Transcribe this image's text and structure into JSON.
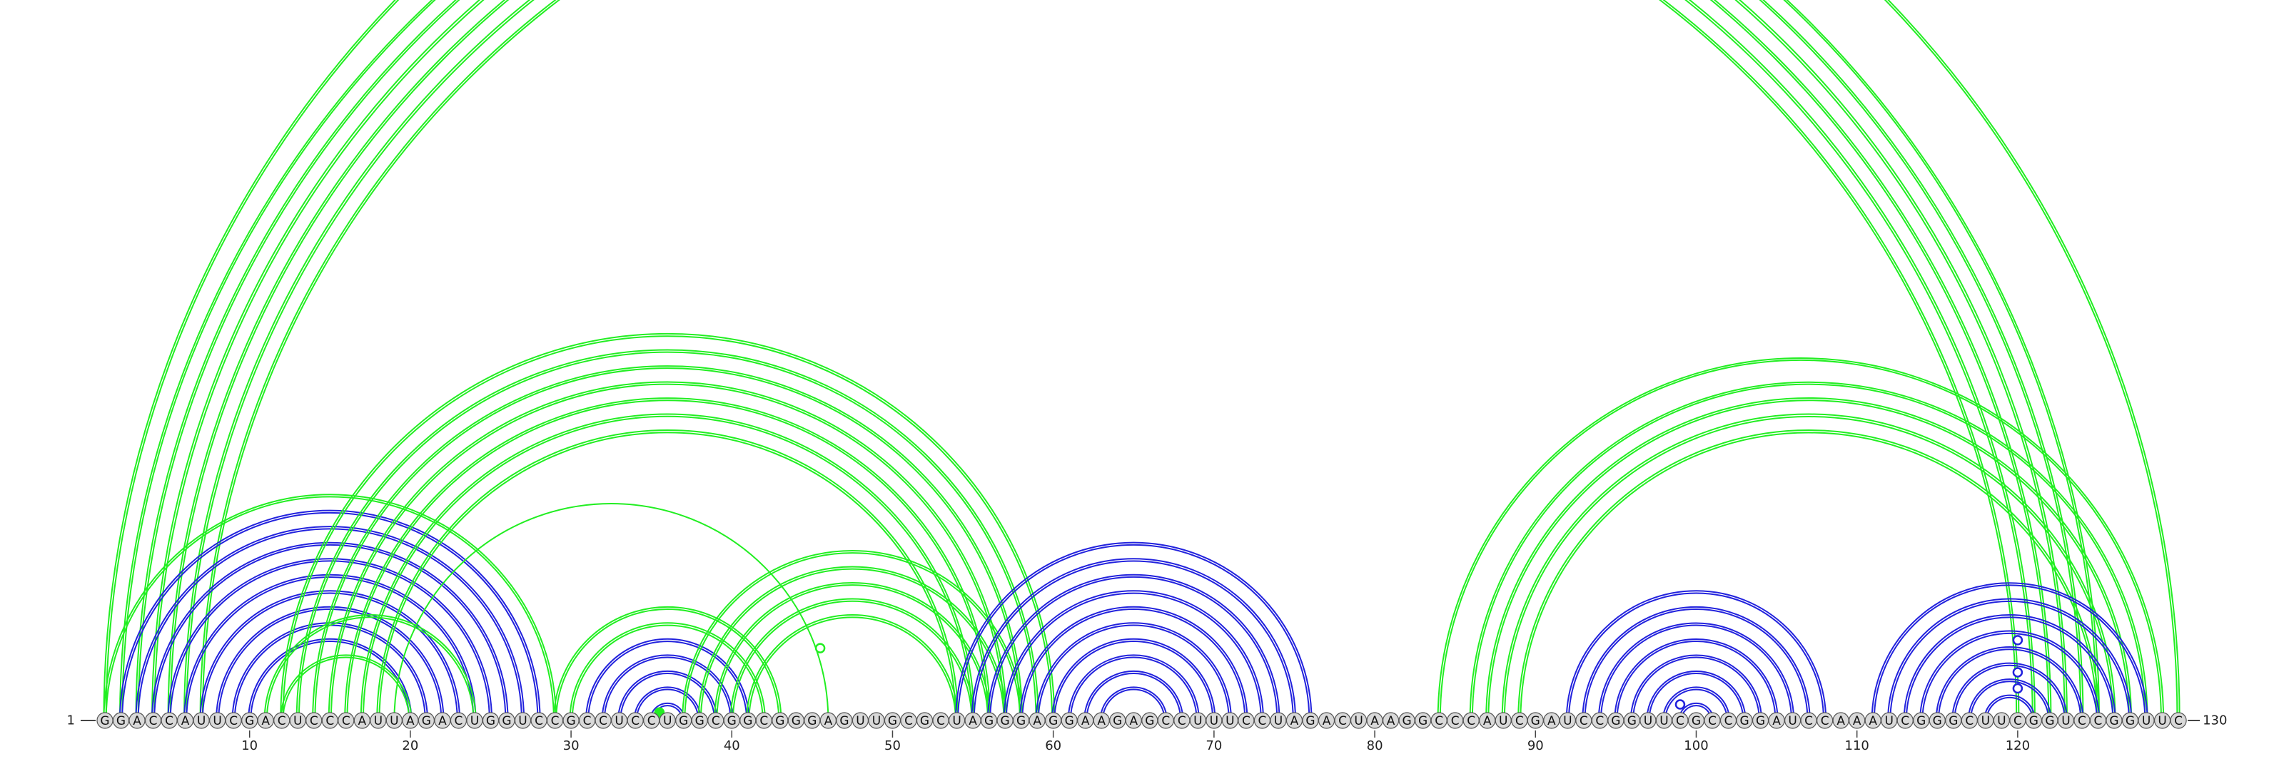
{
  "sequence": "GGACCAUUCGACUCCCAUUAGACUGGUCCGCCUCCUGGCGGCGGGAGUUGCGCUAGGGAGGAAGAGCCUUUCCUAGACUAAGGCCCAUCGAUCCGGUUCGCCGGAUCCAAAUCGGGCUUCGGUCCGGUUC",
  "start_label": "1",
  "end_label": "130",
  "tick_labels": [
    "10",
    "20",
    "30",
    "40",
    "50",
    "60",
    "70",
    "80",
    "90",
    "100",
    "110",
    "120"
  ],
  "colors": {
    "green": "#22ee22",
    "blue": "#2222dd",
    "nucleotide_fill": "#d9d9d9",
    "nucleotide_stroke": "#555555"
  },
  "arc_groups": [
    {
      "color": "green",
      "tracks": 2,
      "pairs": [
        [
          1,
          130
        ],
        [
          2,
          125
        ],
        [
          3,
          124
        ],
        [
          4,
          123
        ],
        [
          5,
          122
        ],
        [
          6,
          121
        ],
        [
          7,
          120
        ]
      ]
    },
    {
      "color": "blue",
      "tracks": 2,
      "pairs": [
        [
          2,
          28
        ],
        [
          3,
          27
        ],
        [
          4,
          26
        ],
        [
          5,
          25
        ],
        [
          6,
          24
        ],
        [
          7,
          23
        ],
        [
          8,
          22
        ],
        [
          9,
          21
        ],
        [
          10,
          20
        ]
      ]
    },
    {
      "color": "green",
      "tracks": 2,
      "pairs": [
        [
          1,
          29
        ],
        [
          11,
          24
        ],
        [
          12,
          20
        ]
      ]
    },
    {
      "color": "green",
      "tracks": 2,
      "pairs": [
        [
          12,
          60
        ],
        [
          13,
          59
        ],
        [
          14,
          58
        ],
        [
          15,
          57
        ],
        [
          16,
          56
        ],
        [
          17,
          55
        ],
        [
          18,
          54
        ]
      ]
    },
    {
      "color": "green",
      "tracks": 1,
      "pairs": [
        [
          19,
          46
        ]
      ]
    },
    {
      "color": "green",
      "tracks": 2,
      "pairs": [
        [
          29,
          43
        ],
        [
          30,
          42
        ]
      ]
    },
    {
      "color": "blue",
      "tracks": 2,
      "pairs": [
        [
          31,
          41
        ],
        [
          32,
          40
        ],
        [
          33,
          39
        ],
        [
          34,
          38
        ],
        [
          35,
          37
        ]
      ]
    },
    {
      "color": "green",
      "tracks": 2,
      "pairs": [
        [
          37,
          58
        ],
        [
          38,
          57
        ],
        [
          39,
          56
        ],
        [
          40,
          55
        ],
        [
          41,
          54
        ]
      ]
    },
    {
      "color": "blue",
      "tracks": 2,
      "pairs": [
        [
          54,
          76
        ],
        [
          55,
          75
        ],
        [
          56,
          74
        ],
        [
          57,
          73
        ],
        [
          58,
          72
        ],
        [
          59,
          71
        ],
        [
          60,
          70
        ],
        [
          61,
          69
        ],
        [
          62,
          68
        ],
        [
          63,
          67
        ]
      ]
    },
    {
      "color": "green",
      "tracks": 2,
      "pairs": [
        [
          84,
          129
        ],
        [
          86,
          128
        ],
        [
          87,
          127
        ],
        [
          88,
          126
        ],
        [
          89,
          125
        ]
      ]
    },
    {
      "color": "blue",
      "tracks": 2,
      "pairs": [
        [
          92,
          108
        ],
        [
          93,
          107
        ],
        [
          94,
          106
        ],
        [
          95,
          105
        ],
        [
          96,
          104
        ],
        [
          97,
          103
        ],
        [
          98,
          102
        ],
        [
          99,
          101
        ]
      ]
    },
    {
      "color": "blue",
      "tracks": 2,
      "pairs": [
        [
          111,
          128
        ],
        [
          112,
          127
        ],
        [
          113,
          126
        ],
        [
          114,
          125
        ],
        [
          115,
          124
        ],
        [
          116,
          123
        ],
        [
          117,
          122
        ],
        [
          118,
          121
        ]
      ]
    }
  ],
  "arc_markers": [
    {
      "pair": [
        1,
        130
      ],
      "color": "green",
      "filled": false
    },
    {
      "pair": [
        35,
        36
      ],
      "color": "green",
      "filled": true
    },
    {
      "pair": [
        41,
        50
      ],
      "color": "green",
      "filled": false
    },
    {
      "pair": [
        98,
        100
      ],
      "color": "blue",
      "filled": false
    },
    {
      "pair": [
        115,
        125
      ],
      "color": "blue",
      "filled": false
    },
    {
      "pair": [
        117,
        123
      ],
      "color": "blue",
      "filled": false
    },
    {
      "pair": [
        118,
        122
      ],
      "color": "blue",
      "filled": false
    }
  ]
}
